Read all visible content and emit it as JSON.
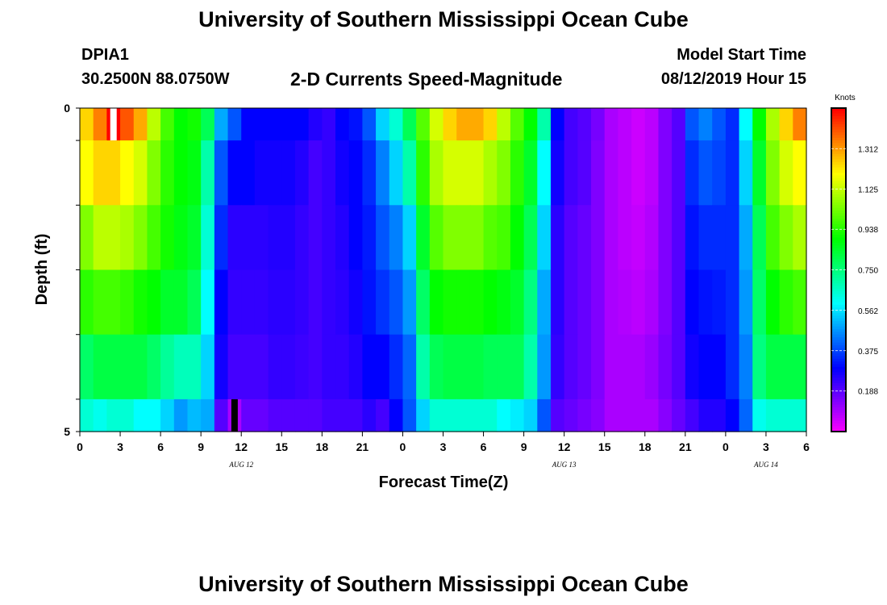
{
  "header": {
    "title_top": "University of Southern Mississippi Ocean Cube",
    "station_id": "DPIA1",
    "coords": "30.2500N 88.0750W",
    "chart_title": "2-D Currents Speed-Magnitude",
    "model_label": "Model Start Time",
    "model_time": "08/12/2019 Hour 15"
  },
  "footer": {
    "title_bottom": "University of Southern Mississippi Ocean Cube"
  },
  "chart_data": {
    "type": "heatmap",
    "title": "2-D Currents Speed-Magnitude",
    "xlabel": "Forecast Time(Z)",
    "ylabel": "Depth (ft)",
    "x_tick_labels": [
      "0",
      "3",
      "6",
      "9",
      "12",
      "15",
      "18",
      "21",
      "0",
      "3",
      "6",
      "9",
      "12",
      "15",
      "18",
      "21",
      "0",
      "3",
      "6"
    ],
    "y_tick_labels": [
      "0",
      "5"
    ],
    "ylim": [
      0,
      5
    ],
    "x_hours_range": [
      0,
      54
    ],
    "date_labels": [
      {
        "text": "AUG 12",
        "hour": 12
      },
      {
        "text": "AUG 13",
        "hour": 36
      },
      {
        "text": "AUG 14",
        "hour": 51
      }
    ],
    "colorbar": {
      "unit": "Knots",
      "range": [
        0,
        1.5
      ],
      "tick_labels": [
        "1.312",
        "1.125",
        "0.938",
        "0.750",
        "0.562",
        "0.375",
        "0.188"
      ],
      "tick_values": [
        1.312,
        1.125,
        0.938,
        0.75,
        0.562,
        0.375,
        0.188
      ]
    },
    "depth_layers": [
      0,
      0.5,
      1.5,
      2.5,
      3.5,
      4.5,
      5
    ],
    "x_hours": [
      0,
      1,
      2,
      3,
      4,
      5,
      6,
      7,
      8,
      9,
      10,
      11,
      12,
      13,
      14,
      15,
      16,
      17,
      18,
      19,
      20,
      21,
      22,
      23,
      24,
      25,
      26,
      27,
      28,
      29,
      30,
      31,
      32,
      33,
      34,
      35,
      36,
      37,
      38,
      39,
      40,
      41,
      42,
      43,
      44,
      45,
      46,
      47,
      48,
      49,
      50,
      51,
      52,
      53
    ],
    "speeds": [
      [
        1.25,
        1.35,
        1.5,
        1.4,
        1.3,
        1.12,
        0.98,
        0.9,
        0.92,
        0.8,
        0.5,
        0.4,
        0.3,
        0.3,
        0.3,
        0.3,
        0.3,
        0.26,
        0.24,
        0.3,
        0.32,
        0.4,
        0.55,
        0.65,
        0.8,
        1.0,
        1.15,
        1.25,
        1.3,
        1.3,
        1.25,
        1.12,
        1.0,
        0.9,
        0.7,
        0.3,
        0.22,
        0.2,
        0.16,
        0.1,
        0.08,
        0.06,
        0.08,
        0.15,
        0.2,
        0.4,
        0.45,
        0.4,
        0.35,
        0.6,
        0.9,
        1.1,
        1.25,
        1.35
      ],
      [
        1.2,
        1.25,
        1.25,
        1.2,
        1.15,
        1.05,
        0.95,
        0.9,
        0.88,
        0.7,
        0.4,
        0.3,
        0.3,
        0.28,
        0.28,
        0.28,
        0.26,
        0.22,
        0.24,
        0.28,
        0.3,
        0.35,
        0.45,
        0.55,
        0.7,
        0.95,
        1.1,
        1.15,
        1.15,
        1.15,
        1.1,
        1.05,
        0.95,
        0.85,
        0.6,
        0.28,
        0.22,
        0.2,
        0.15,
        0.1,
        0.08,
        0.06,
        0.08,
        0.15,
        0.2,
        0.35,
        0.4,
        0.38,
        0.35,
        0.55,
        0.85,
        1.05,
        1.15,
        1.2
      ],
      [
        1.05,
        1.12,
        1.12,
        1.1,
        1.05,
        0.98,
        0.92,
        0.88,
        0.85,
        0.65,
        0.35,
        0.25,
        0.25,
        0.25,
        0.26,
        0.26,
        0.24,
        0.22,
        0.24,
        0.26,
        0.3,
        0.33,
        0.4,
        0.45,
        0.55,
        0.85,
        1.0,
        1.05,
        1.05,
        1.05,
        1.0,
        0.98,
        0.9,
        0.8,
        0.55,
        0.25,
        0.2,
        0.18,
        0.15,
        0.1,
        0.08,
        0.07,
        0.09,
        0.15,
        0.2,
        0.32,
        0.35,
        0.35,
        0.35,
        0.5,
        0.8,
        0.98,
        1.05,
        1.1
      ],
      [
        0.95,
        0.98,
        0.98,
        0.96,
        0.92,
        0.9,
        0.85,
        0.85,
        0.8,
        0.6,
        0.3,
        0.24,
        0.24,
        0.24,
        0.25,
        0.25,
        0.24,
        0.22,
        0.24,
        0.25,
        0.28,
        0.32,
        0.36,
        0.4,
        0.48,
        0.78,
        0.9,
        0.92,
        0.92,
        0.92,
        0.9,
        0.88,
        0.85,
        0.75,
        0.5,
        0.25,
        0.2,
        0.18,
        0.15,
        0.1,
        0.09,
        0.08,
        0.1,
        0.15,
        0.2,
        0.3,
        0.32,
        0.33,
        0.35,
        0.48,
        0.78,
        0.9,
        0.95,
        0.98
      ],
      [
        0.78,
        0.82,
        0.82,
        0.82,
        0.82,
        0.78,
        0.72,
        0.68,
        0.68,
        0.55,
        0.28,
        0.22,
        0.22,
        0.22,
        0.24,
        0.24,
        0.23,
        0.22,
        0.24,
        0.24,
        0.26,
        0.3,
        0.3,
        0.35,
        0.42,
        0.7,
        0.8,
        0.82,
        0.82,
        0.82,
        0.8,
        0.8,
        0.8,
        0.7,
        0.48,
        0.24,
        0.2,
        0.18,
        0.15,
        0.1,
        0.1,
        0.1,
        0.12,
        0.16,
        0.2,
        0.28,
        0.3,
        0.3,
        0.35,
        0.45,
        0.75,
        0.82,
        0.82,
        0.82
      ],
      [
        0.65,
        0.62,
        0.65,
        0.65,
        0.6,
        0.6,
        0.55,
        0.48,
        0.52,
        0.5,
        0.2,
        0.1,
        0.18,
        0.18,
        0.2,
        0.2,
        0.2,
        0.2,
        0.22,
        0.22,
        0.22,
        0.25,
        0.22,
        0.3,
        0.4,
        0.55,
        0.65,
        0.65,
        0.65,
        0.65,
        0.65,
        0.6,
        0.58,
        0.55,
        0.4,
        0.2,
        0.18,
        0.16,
        0.14,
        0.1,
        0.1,
        0.1,
        0.1,
        0.14,
        0.18,
        0.22,
        0.26,
        0.26,
        0.3,
        0.42,
        0.62,
        0.65,
        0.65,
        0.65
      ]
    ],
    "markers": [
      {
        "hour": 2,
        "depth": 0,
        "color": "white"
      },
      {
        "hour": 11,
        "depth": 4.5,
        "color": "black"
      }
    ]
  }
}
